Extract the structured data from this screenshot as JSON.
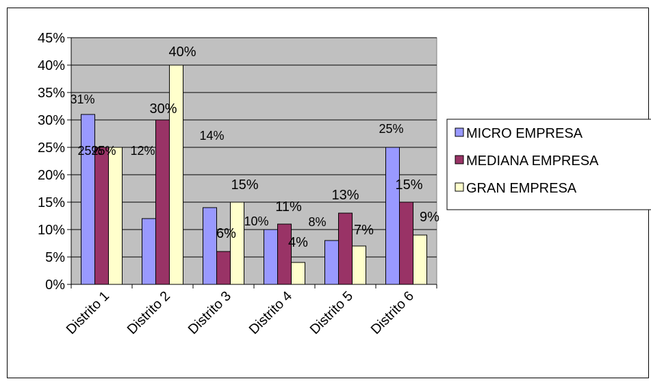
{
  "chart_data": {
    "type": "bar",
    "categories": [
      "Distrito 1",
      "Distrito 2",
      "Distrito 3",
      "Distrito 4",
      "Distrito 5",
      "Distrito 6"
    ],
    "series": [
      {
        "name": "MICRO EMPRESA",
        "color": "#9999FF",
        "values": [
          31,
          12,
          14,
          10,
          8,
          25
        ],
        "labels": [
          "31%",
          "12%",
          "14%",
          "10%",
          "8%",
          "25%"
        ]
      },
      {
        "name": "MEDIANA EMPRESA",
        "color": "#993366",
        "values": [
          25,
          30,
          6,
          11,
          13,
          15
        ],
        "labels": [
          "25%",
          "30%",
          "6%",
          "11%",
          "13%",
          "15%"
        ]
      },
      {
        "name": "GRAN EMPRESA",
        "color": "#FFFFCC",
        "values": [
          25,
          40,
          15,
          4,
          7,
          9
        ],
        "labels": [
          "25%",
          "40%",
          "15%",
          "4%",
          "7%",
          "9%"
        ]
      }
    ],
    "yticks": [
      "0%",
      "5%",
      "10%",
      "15%",
      "20%",
      "25%",
      "30%",
      "35%",
      "40%",
      "45%"
    ],
    "ylim": [
      0,
      45
    ],
    "unit": "%",
    "grid": true,
    "plot_background": "#C0C0C0",
    "legend_position": "right",
    "title": "",
    "xlabel": "",
    "ylabel": ""
  }
}
